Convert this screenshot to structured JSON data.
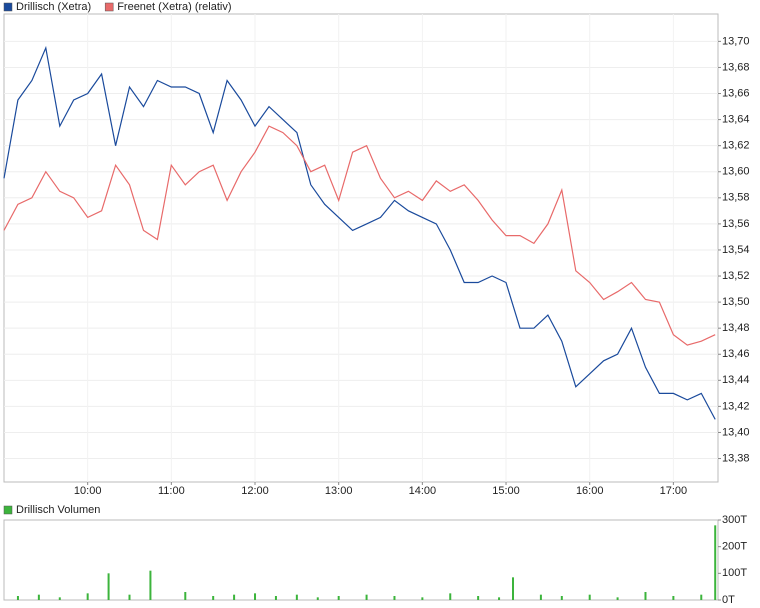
{
  "chart_data": [
    {
      "type": "line",
      "x": [
        540,
        550,
        560,
        570,
        580,
        590,
        600,
        610,
        620,
        630,
        640,
        650,
        660,
        670,
        680,
        690,
        700,
        710,
        720,
        730,
        740,
        750,
        760,
        770,
        780,
        790,
        800,
        810,
        820,
        830,
        840,
        850,
        860,
        870,
        880,
        890,
        900,
        910,
        920,
        930,
        940,
        950,
        960,
        970,
        980,
        990,
        1000,
        1010,
        1020,
        1030,
        1040,
        1050
      ],
      "series": [
        {
          "name": "Drillisch (Xetra)",
          "color": "#1a4a9c",
          "values": [
            13.595,
            13.655,
            13.67,
            13.695,
            13.635,
            13.655,
            13.66,
            13.675,
            13.62,
            13.665,
            13.65,
            13.67,
            13.665,
            13.665,
            13.66,
            13.63,
            13.67,
            13.655,
            13.635,
            13.65,
            13.64,
            13.63,
            13.59,
            13.575,
            13.565,
            13.555,
            13.56,
            13.565,
            13.578,
            13.57,
            13.565,
            13.56,
            13.54,
            13.515,
            13.515,
            13.52,
            13.515,
            13.48,
            13.48,
            13.49,
            13.47,
            13.435,
            13.445,
            13.455,
            13.46,
            13.48,
            13.45,
            13.43,
            13.43,
            13.425,
            13.43,
            13.41
          ]
        },
        {
          "name": "Freenet (Xetra) (relativ)",
          "color": "#e86a6a",
          "values": [
            13.555,
            13.575,
            13.58,
            13.6,
            13.585,
            13.58,
            13.565,
            13.57,
            13.605,
            13.59,
            13.555,
            13.548,
            13.605,
            13.59,
            13.6,
            13.605,
            13.578,
            13.6,
            13.615,
            13.635,
            13.63,
            13.62,
            13.6,
            13.605,
            13.578,
            13.615,
            13.62,
            13.595,
            13.58,
            13.585,
            13.578,
            13.593,
            13.585,
            13.59,
            13.578,
            13.563,
            13.551,
            13.551,
            13.545,
            13.56,
            13.586,
            13.524,
            13.515,
            13.502,
            13.508,
            13.515,
            13.502,
            13.5,
            13.475,
            13.467,
            13.47,
            13.475
          ]
        }
      ],
      "xlim": [
        540,
        1052
      ],
      "xticks": [
        {
          "value": 600,
          "label": "10:00"
        },
        {
          "value": 660,
          "label": "11:00"
        },
        {
          "value": 720,
          "label": "12:00"
        },
        {
          "value": 780,
          "label": "13:00"
        },
        {
          "value": 840,
          "label": "14:00"
        },
        {
          "value": 900,
          "label": "15:00"
        },
        {
          "value": 960,
          "label": "16:00"
        },
        {
          "value": 1020,
          "label": "17:00"
        }
      ],
      "ylim": [
        13.362,
        13.721
      ],
      "yticks": [
        {
          "value": 13.38,
          "label": "13,38"
        },
        {
          "value": 13.4,
          "label": "13,40"
        },
        {
          "value": 13.42,
          "label": "13,42"
        },
        {
          "value": 13.44,
          "label": "13,44"
        },
        {
          "value": 13.46,
          "label": "13,46"
        },
        {
          "value": 13.48,
          "label": "13,48"
        },
        {
          "value": 13.5,
          "label": "13,50"
        },
        {
          "value": 13.52,
          "label": "13,52"
        },
        {
          "value": 13.54,
          "label": "13,54"
        },
        {
          "value": 13.56,
          "label": "13,56"
        },
        {
          "value": 13.58,
          "label": "13,58"
        },
        {
          "value": 13.6,
          "label": "13,60"
        },
        {
          "value": 13.62,
          "label": "13,62"
        },
        {
          "value": 13.64,
          "label": "13,64"
        },
        {
          "value": 13.66,
          "label": "13,66"
        },
        {
          "value": 13.68,
          "label": "13,68"
        },
        {
          "value": 13.7,
          "label": "13,70"
        }
      ],
      "grid": true
    },
    {
      "type": "bar",
      "x": [
        550,
        565,
        580,
        600,
        615,
        630,
        645,
        670,
        690,
        705,
        720,
        735,
        750,
        765,
        780,
        800,
        820,
        840,
        860,
        880,
        895,
        905,
        925,
        940,
        960,
        980,
        1000,
        1020,
        1040,
        1050
      ],
      "series": [
        {
          "name": "Drillisch Volumen",
          "color": "#3cb43c",
          "values": [
            15,
            20,
            10,
            25,
            100,
            20,
            110,
            30,
            15,
            20,
            25,
            15,
            20,
            10,
            15,
            20,
            15,
            10,
            25,
            15,
            10,
            85,
            20,
            15,
            20,
            10,
            30,
            15,
            20,
            280
          ]
        }
      ],
      "xlim": [
        540,
        1052
      ],
      "ylim": [
        0,
        300
      ],
      "yticks": [
        {
          "value": 0,
          "label": "0T"
        },
        {
          "value": 100,
          "label": "100T"
        },
        {
          "value": 200,
          "label": "200T"
        },
        {
          "value": 300,
          "label": "300T"
        }
      ]
    }
  ]
}
